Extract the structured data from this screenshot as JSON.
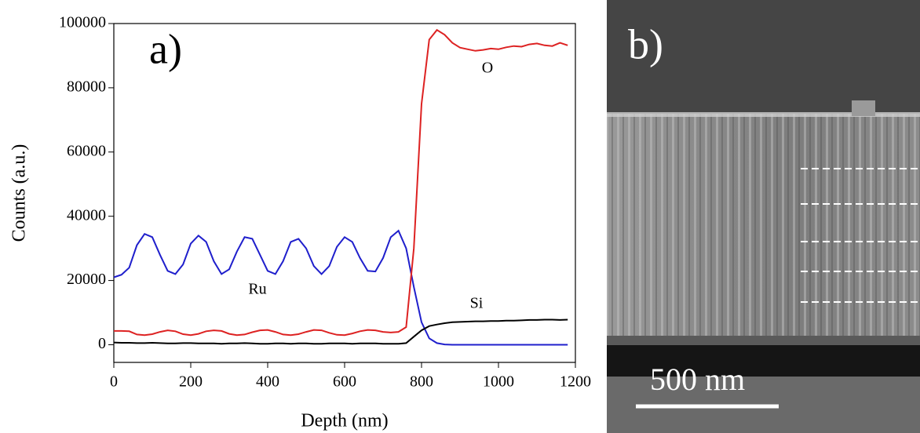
{
  "chart_data": {
    "type": "line",
    "panel_label": "a)",
    "x_label": "Depth (nm)",
    "y_label": "Counts (a.u.)",
    "x": [
      0,
      20,
      40,
      60,
      80,
      100,
      120,
      140,
      160,
      180,
      200,
      220,
      240,
      260,
      280,
      300,
      320,
      340,
      360,
      380,
      400,
      420,
      440,
      460,
      480,
      500,
      520,
      540,
      560,
      580,
      600,
      620,
      640,
      660,
      680,
      700,
      720,
      740,
      760,
      780,
      800,
      820,
      840,
      860,
      880,
      900,
      920,
      940,
      960,
      980,
      1000,
      1020,
      1040,
      1060,
      1080,
      1100,
      1120,
      1140,
      1160,
      1180
    ],
    "series": [
      {
        "name": "Ru",
        "color": "#1f1fcc",
        "values": [
          21000,
          21800,
          24000,
          31000,
          34500,
          33500,
          28000,
          23000,
          22000,
          25000,
          31500,
          34000,
          32000,
          26000,
          22000,
          23500,
          29000,
          33500,
          33000,
          28000,
          23000,
          22000,
          26000,
          32000,
          33000,
          30000,
          24500,
          22000,
          24500,
          30500,
          33500,
          32000,
          27000,
          23000,
          22800,
          27000,
          33500,
          35500,
          30000,
          18000,
          7000,
          2000,
          500,
          100,
          0,
          0,
          0,
          0,
          0,
          0,
          0,
          0,
          0,
          0,
          0,
          0,
          0,
          0,
          0,
          0
        ]
      },
      {
        "name": "O",
        "color": "#dd2222",
        "values": [
          4300,
          4300,
          4200,
          3200,
          3000,
          3300,
          4000,
          4500,
          4200,
          3300,
          3000,
          3400,
          4200,
          4500,
          4300,
          3400,
          3000,
          3200,
          3900,
          4500,
          4600,
          4000,
          3200,
          3000,
          3300,
          4000,
          4600,
          4500,
          3700,
          3100,
          3000,
          3500,
          4200,
          4600,
          4500,
          4000,
          3800,
          4000,
          5500,
          30000,
          75000,
          95000,
          98000,
          96500,
          94000,
          92500,
          92000,
          91500,
          91800,
          92200,
          92000,
          92600,
          93000,
          92800,
          93500,
          93800,
          93200,
          93000,
          94000,
          93200
        ]
      },
      {
        "name": "Si",
        "color": "#000000",
        "values": [
          700,
          600,
          600,
          500,
          500,
          600,
          500,
          400,
          400,
          500,
          500,
          400,
          400,
          400,
          300,
          400,
          400,
          500,
          400,
          300,
          300,
          400,
          400,
          300,
          400,
          400,
          300,
          300,
          400,
          400,
          400,
          300,
          400,
          400,
          400,
          300,
          300,
          300,
          500,
          2500,
          4500,
          5800,
          6300,
          6700,
          7000,
          7100,
          7200,
          7300,
          7300,
          7400,
          7400,
          7500,
          7500,
          7600,
          7700,
          7700,
          7800,
          7800,
          7700,
          7800
        ]
      }
    ],
    "xlim": [
      0,
      1200
    ],
    "xticks": [
      0,
      200,
      400,
      600,
      800,
      1000,
      1200
    ],
    "ylim": [
      -5500,
      100000
    ],
    "yticks": [
      0,
      20000,
      40000,
      60000,
      80000,
      100000
    ]
  },
  "image": {
    "panel_label": "b)",
    "scale_bar": "500 nm"
  }
}
